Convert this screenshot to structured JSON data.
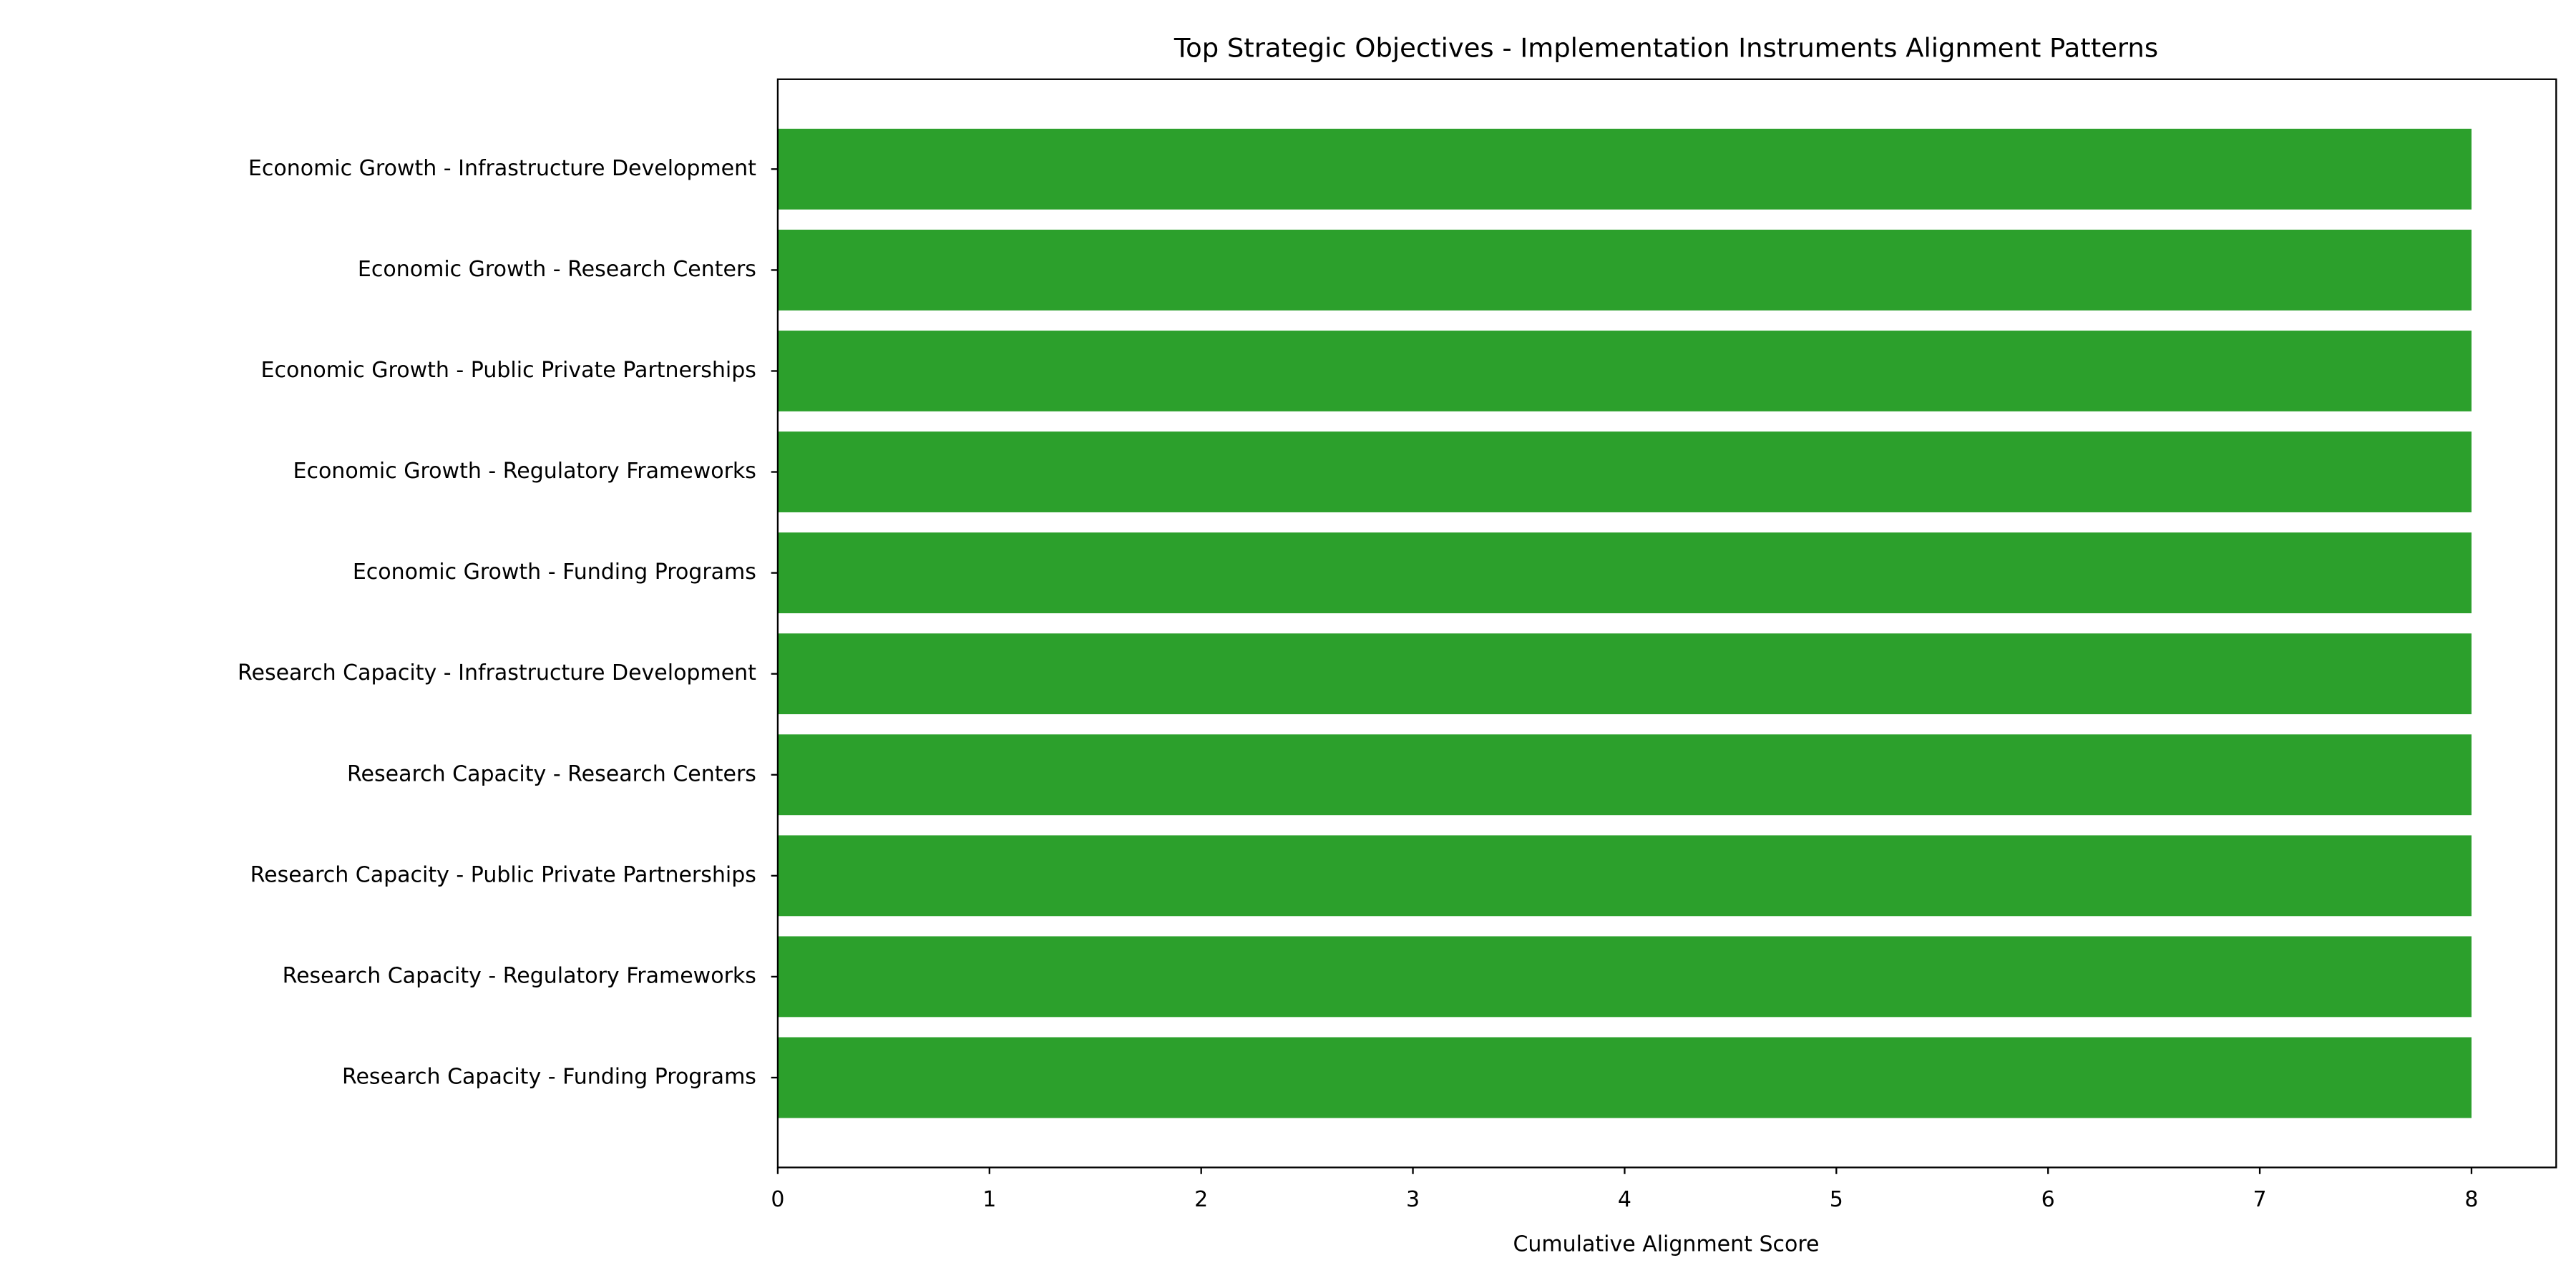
{
  "chart_data": {
    "type": "barh",
    "title": "Top Strategic Objectives - Implementation Instruments Alignment Patterns",
    "x_label": "Cumulative Alignment Score",
    "categories": [
      "Economic Growth - Infrastructure Development",
      "Economic Growth - Research Centers",
      "Economic Growth - Public Private Partnerships",
      "Economic Growth - Regulatory Frameworks",
      "Economic Growth - Funding Programs",
      "Research Capacity - Infrastructure Development",
      "Research Capacity - Research Centers",
      "Research Capacity - Public Private Partnerships",
      "Research Capacity - Regulatory Frameworks",
      "Research Capacity - Funding Programs"
    ],
    "values": [
      8,
      8,
      8,
      8,
      8,
      8,
      8,
      8,
      8,
      8
    ],
    "color": "#2ca02c",
    "xlim": [
      0,
      8.4
    ],
    "xticks": [
      0,
      1,
      2,
      3,
      4,
      5,
      6,
      7,
      8
    ],
    "grid": false
  }
}
